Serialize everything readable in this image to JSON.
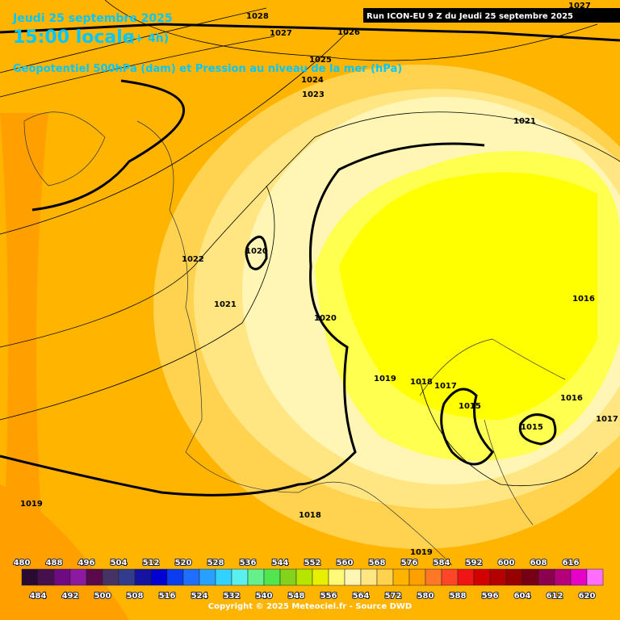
{
  "header": {
    "date": "Jeudi 25 septembre 2025",
    "time": "15:00 locale",
    "offset": "(+ 4h)",
    "subtitle": "Geopotentiel 500hPa (dam) et Pression au niveau de la mer (hPa)",
    "run": "Run ICON-EU 9 Z du Jeudi 25 septembre 2025"
  },
  "isobar_labels": [
    1028,
    1027,
    1026,
    1025,
    1024,
    1023,
    1021,
    1027,
    1022,
    1020,
    1021,
    1020,
    1019,
    1018,
    1017,
    1015,
    1016,
    1015,
    1016,
    1017,
    1019,
    1018,
    1019
  ],
  "legend": {
    "values": [
      480,
      484,
      488,
      492,
      496,
      500,
      504,
      508,
      512,
      516,
      520,
      524,
      528,
      532,
      536,
      540,
      544,
      548,
      552,
      556,
      560,
      564,
      568,
      572,
      576,
      580,
      584,
      588,
      592,
      596,
      600,
      604,
      608,
      612,
      616,
      620
    ],
    "colors": [
      "#2a0a32",
      "#46104e",
      "#6e0a82",
      "#8c1aa0",
      "#5a0a4a",
      "#463264",
      "#323c8c",
      "#1414a0",
      "#0000d2",
      "#0a3cf0",
      "#1e6eff",
      "#28a0ff",
      "#32d2ff",
      "#5af0f0",
      "#64f08c",
      "#50e650",
      "#82d21e",
      "#b4e600",
      "#e6f000",
      "#fffa78",
      "#fff5b4",
      "#ffe682",
      "#ffd250",
      "#ffb400",
      "#ffa000",
      "#ff7828",
      "#ff4628",
      "#f01414",
      "#d20000",
      "#b40000",
      "#960000",
      "#780014",
      "#8c0050",
      "#b4007a",
      "#e600c8",
      "#ff6eff"
    ]
  },
  "footer": {
    "copyright": "Copyright © 2025 Meteociel.fr - Source DWD"
  }
}
